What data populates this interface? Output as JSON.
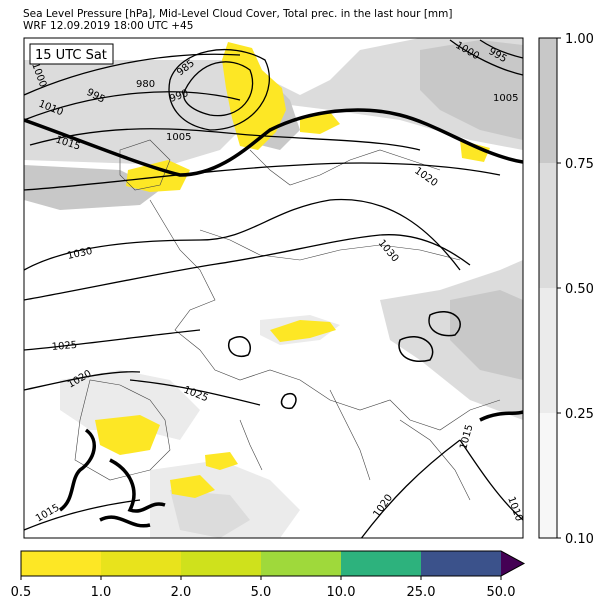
{
  "header": {
    "line1": "Sea Level Pressure [hPa], Mid-Level Cloud Cover, Total prec. in the last hour [mm]",
    "line2": "WRF 12.09.2019 18:00 UTC +45"
  },
  "map": {
    "time_box": "15 UTC Sat",
    "isobar_labels": [
      "1000",
      "995",
      "1005",
      "1010",
      "1015",
      "1020",
      "1020",
      "1015",
      "1010",
      "1030",
      "1030",
      "1025",
      "1020",
      "1025",
      "1015",
      "980",
      "985",
      "990",
      "995",
      "1005",
      "1000",
      "1020",
      "1010",
      "1015"
    ]
  },
  "cloud_colorbar": {
    "ticks": [
      "1.00",
      "0.75",
      "0.50",
      "0.25",
      "0.10"
    ],
    "colors": [
      "#c8c8c8",
      "#dcdcdc",
      "#ebebeb",
      "#f7f7f7"
    ]
  },
  "precip_colorbar": {
    "ticks": [
      "0.5",
      "1.0",
      "2.0",
      "5.0",
      "10.0",
      "25.0",
      "50.0"
    ],
    "colors": [
      "#fde725",
      "#e8e31c",
      "#cfe11c",
      "#9fd93b",
      "#2db27d",
      "#3b528b",
      "#440154"
    ]
  }
}
